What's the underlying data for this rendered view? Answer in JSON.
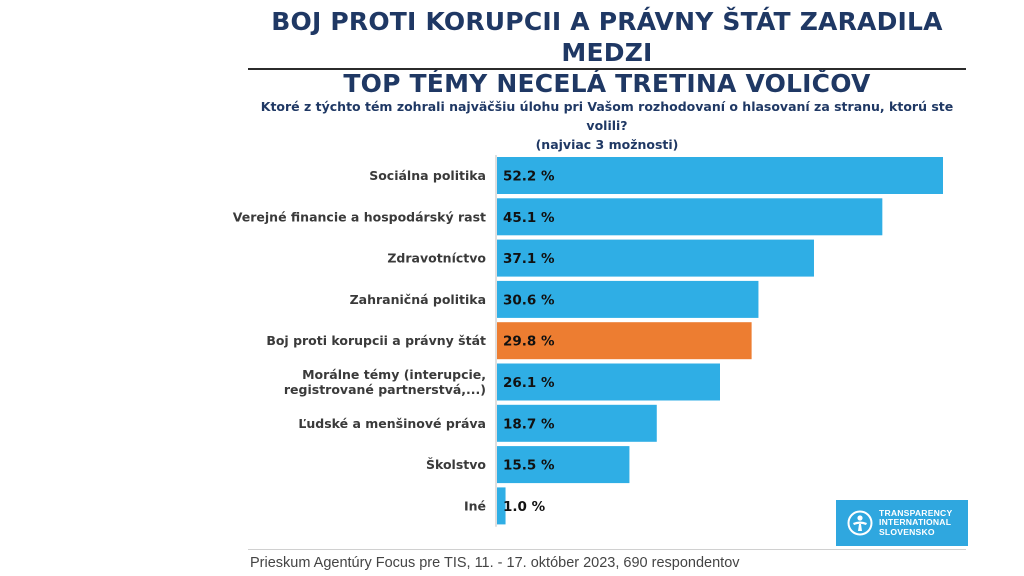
{
  "title": {
    "line1": "BOJ PROTI KORUPCII A PRÁVNY ŠTÁT ZARADILA MEDZI",
    "line2": "TOP TÉMY NECELÁ TRETINA VOLIČOV"
  },
  "colors": {
    "bar_default": "#2faee5",
    "bar_highlight": "#ed7d31",
    "title": "#1f3864"
  },
  "chart_data": {
    "type": "bar",
    "orientation": "horizontal",
    "title": "Ktoré z týchto tém zohrali najväčšiu úlohu pri Vašom rozhodovaní o hlasovaní za stranu, ktorú ste volili?",
    "subtitle": "(najviac 3 možnosti)",
    "xlabel": "",
    "ylabel": "",
    "xlim": [
      0,
      52.2
    ],
    "highlight_index": 4,
    "categories": [
      [
        "Sociálna politika"
      ],
      [
        "Verejné financie a hospodárský rast"
      ],
      [
        "Zdravotníctvo"
      ],
      [
        "Zahraničná politika"
      ],
      [
        "Boj proti korupcii a právny štát"
      ],
      [
        "Morálne témy (interupcie,",
        "registrované partnerstvá,...)"
      ],
      [
        "Ľudské a menšinové práva"
      ],
      [
        "Školstvo"
      ],
      [
        "Iné"
      ]
    ],
    "values": [
      52.2,
      45.1,
      37.1,
      30.6,
      29.8,
      26.1,
      18.7,
      15.5,
      1.0
    ],
    "value_labels": [
      "52.2 %",
      "45.1 %",
      "37.1 %",
      "30.6 %",
      "29.8 %",
      "26.1 %",
      "18.7 %",
      "15.5 %",
      "1.0 %"
    ]
  },
  "logo": {
    "line1": "TRANSPARENCY",
    "line2": "INTERNATIONAL",
    "line3": "SLOVENSKO"
  },
  "footer": "Prieskum Agentúry Focus pre TIS, 11. - 17. október 2023, 690 respondentov"
}
